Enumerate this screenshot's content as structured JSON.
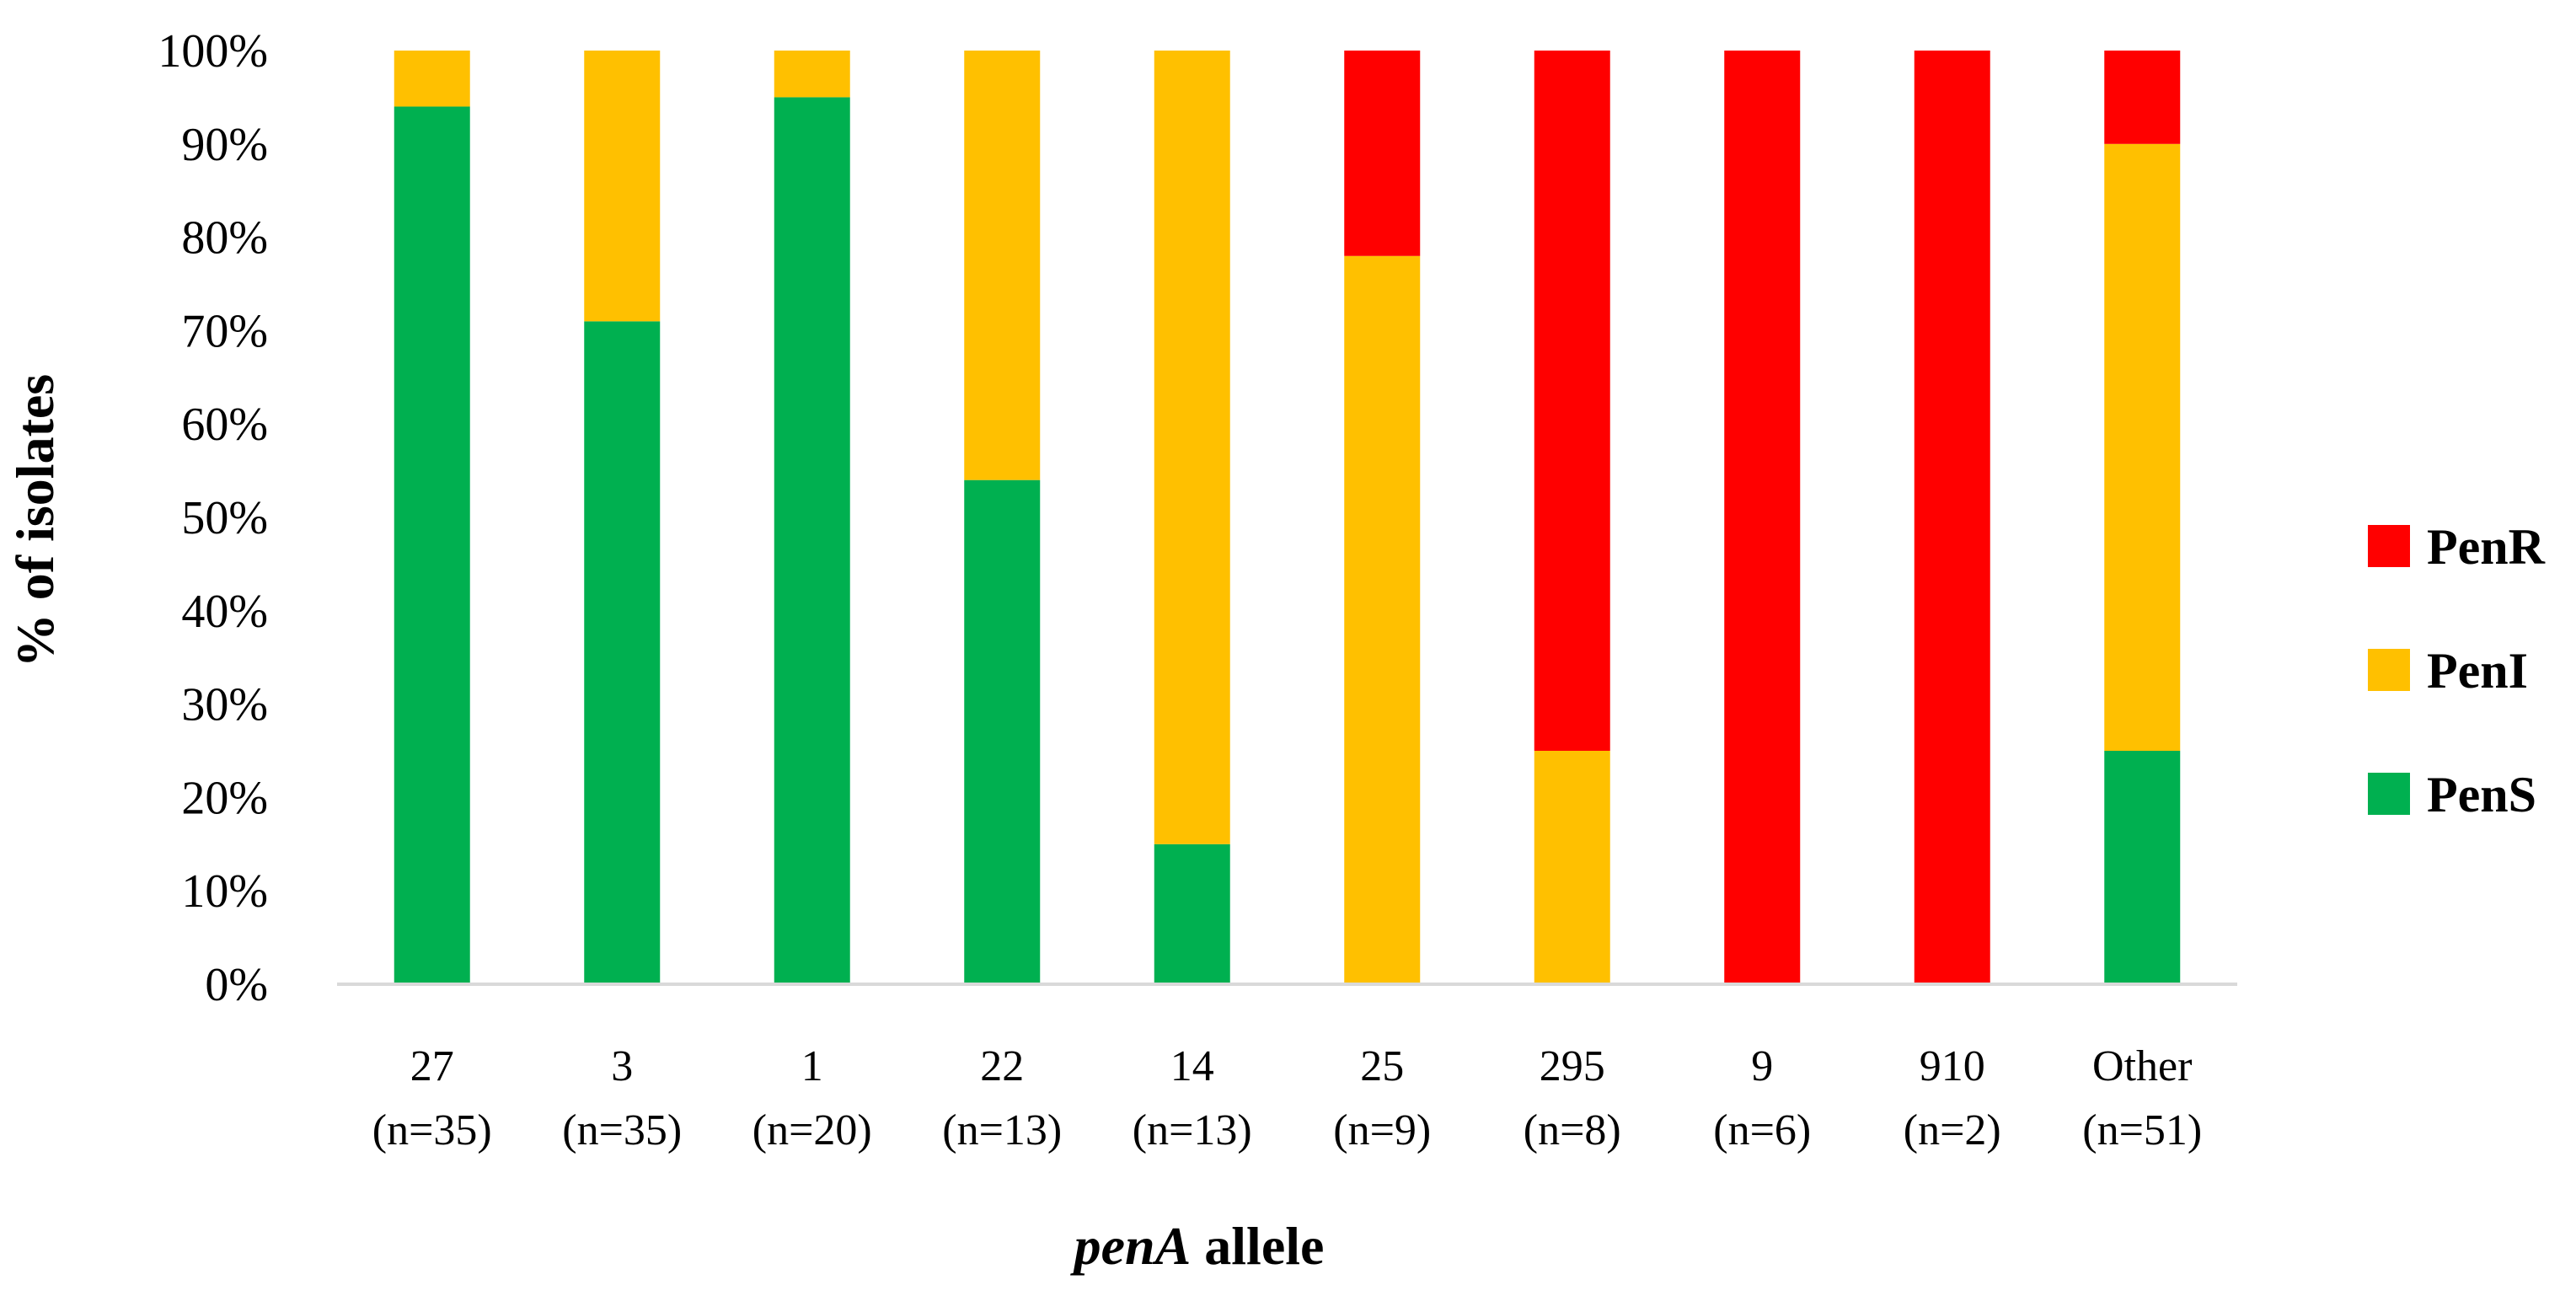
{
  "chart_data": {
    "type": "bar",
    "stacked": true,
    "title": "",
    "xlabel_italic": "penA",
    "xlabel_rest": " allele",
    "ylabel": "% of isolates",
    "ylim": [
      0,
      100
    ],
    "ytick_labels": [
      "0%",
      "10%",
      "20%",
      "30%",
      "40%",
      "50%",
      "60%",
      "70%",
      "80%",
      "90%",
      "100%"
    ],
    "categories": [
      {
        "line1": "27",
        "line2": "(n=35)"
      },
      {
        "line1": "3",
        "line2": "(n=35)"
      },
      {
        "line1": "1",
        "line2": "(n=20)"
      },
      {
        "line1": "22",
        "line2": "(n=13)"
      },
      {
        "line1": "14",
        "line2": "(n=13)"
      },
      {
        "line1": "25",
        "line2": "(n=9)"
      },
      {
        "line1": "295",
        "line2": "(n=8)"
      },
      {
        "line1": "9",
        "line2": "(n=6)"
      },
      {
        "line1": "910",
        "line2": "(n=2)"
      },
      {
        "line1": "Other",
        "line2": "(n=51)"
      }
    ],
    "series": [
      {
        "name": "PenS",
        "color": "#00B050",
        "values": [
          94,
          71,
          95,
          54,
          15,
          0,
          0,
          0,
          0,
          25
        ]
      },
      {
        "name": "PenI",
        "color": "#FFC000",
        "values": [
          6,
          29,
          5,
          46,
          85,
          78,
          25,
          0,
          0,
          65
        ]
      },
      {
        "name": "PenR",
        "color": "#FF0000",
        "values": [
          0,
          0,
          0,
          0,
          0,
          22,
          75,
          100,
          100,
          10
        ]
      }
    ],
    "legend": {
      "placement": "right",
      "order": [
        "PenR",
        "PenI",
        "PenS"
      ]
    },
    "grid": false
  }
}
